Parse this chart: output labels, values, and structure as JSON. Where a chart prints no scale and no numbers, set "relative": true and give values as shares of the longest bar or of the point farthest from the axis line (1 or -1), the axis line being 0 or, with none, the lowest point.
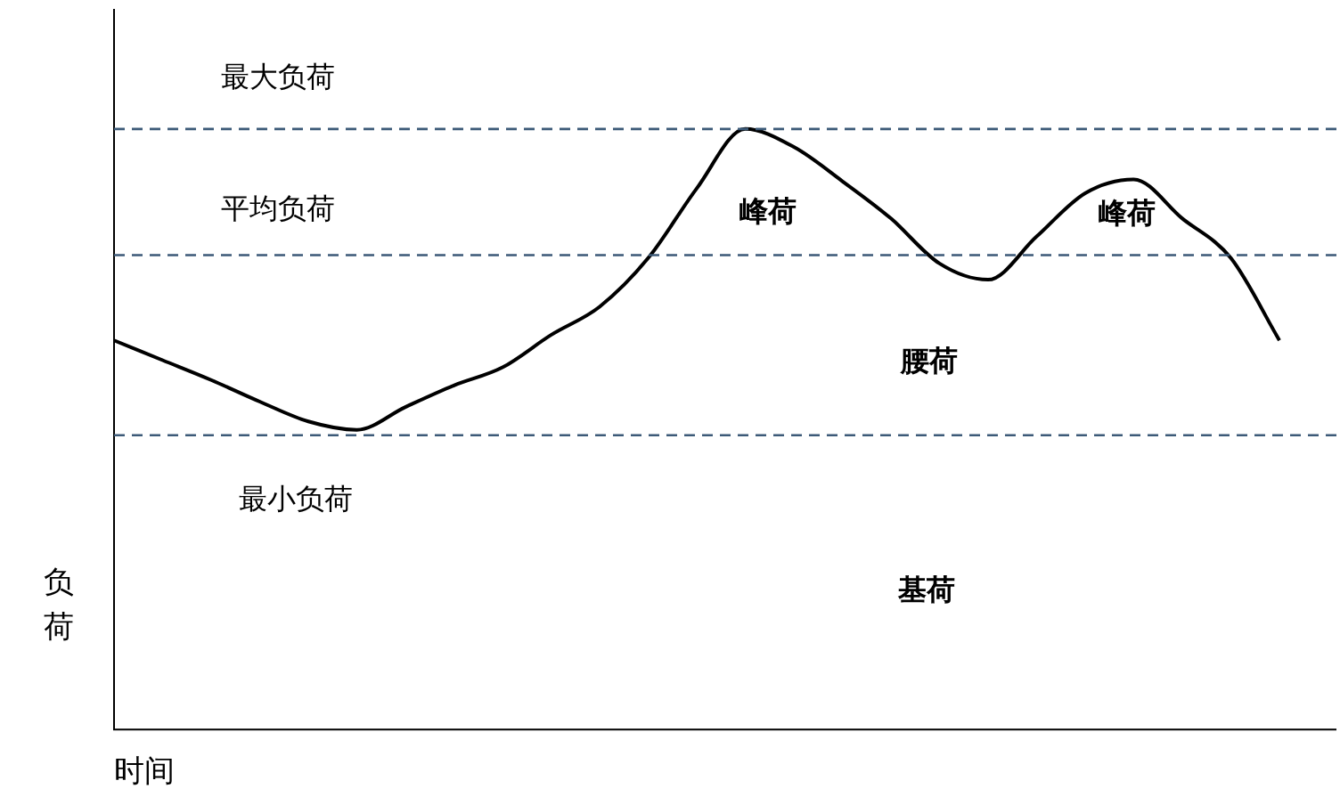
{
  "chart_data": {
    "type": "line",
    "relative": true,
    "xlabel": "时间",
    "ylabel": "负荷",
    "categories": [
      null,
      null,
      null,
      null,
      null,
      null,
      null,
      null,
      null,
      null,
      null,
      null,
      null,
      null,
      null,
      null,
      null,
      null,
      null,
      null,
      null,
      null,
      null,
      null,
      null
    ],
    "series": [
      {
        "color": "#000000",
        "values": [
          0.648,
          0.615,
          0.582,
          0.546,
          0.513,
          0.499,
          0.537,
          0.573,
          0.603,
          0.657,
          0.704,
          0.785,
          0.901,
          1,
          0.97,
          0.913,
          0.851,
          0.776,
          0.749,
          0.821,
          0.893,
          0.916,
          0.851,
          0.785,
          0.648
        ]
      }
    ],
    "ref_lines": [
      {
        "axis": "y",
        "value": 1,
        "label": "最大负荷",
        "color": "#3c5a78",
        "line_style": "dashed"
      },
      {
        "axis": "y",
        "value": 0.79,
        "label": "平均负荷",
        "color": "#3c5a78",
        "line_style": "dashed"
      },
      {
        "axis": "y",
        "value": 0.49,
        "label": "最小负荷",
        "color": "#3c5a78",
        "line_style": "dashed"
      }
    ],
    "annotations": [
      "峰荷",
      "峰荷",
      "腰荷",
      "基荷"
    ],
    "marker": "none",
    "grid": false,
    "legend": false
  }
}
